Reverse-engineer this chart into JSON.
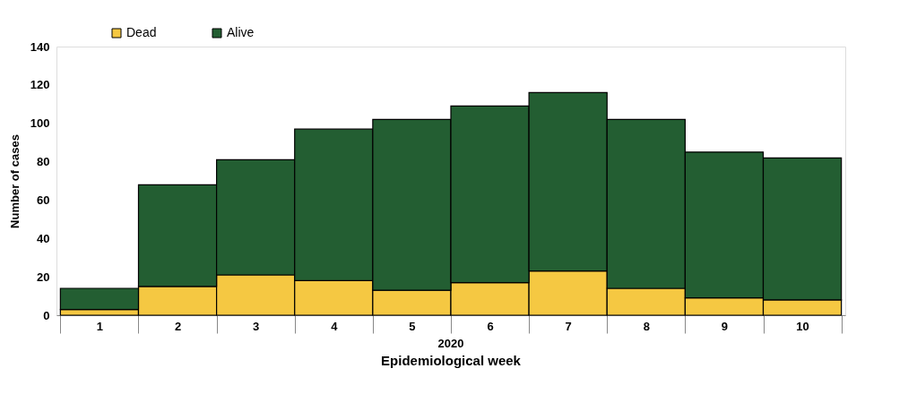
{
  "chart_data": {
    "type": "bar",
    "stacked": true,
    "xlabel": "Epidemiological week",
    "ylabel": "Number of cases",
    "categories": [
      "1",
      "2",
      "3",
      "4",
      "5",
      "6",
      "7",
      "8",
      "9",
      "10"
    ],
    "series": [
      {
        "name": "Dead",
        "color": "#f5c842",
        "values": [
          3,
          15,
          21,
          18,
          13,
          17,
          23,
          14,
          9,
          8
        ]
      },
      {
        "name": "Alive",
        "color": "#235e32",
        "values": [
          11,
          53,
          60,
          79,
          89,
          92,
          93,
          88,
          76,
          74
        ]
      }
    ],
    "ylim": [
      0,
      140
    ],
    "yticks": [
      0,
      20,
      40,
      60,
      80,
      100,
      120,
      140
    ],
    "grid": false,
    "legend": "top left",
    "annotations": [
      "2020"
    ]
  }
}
